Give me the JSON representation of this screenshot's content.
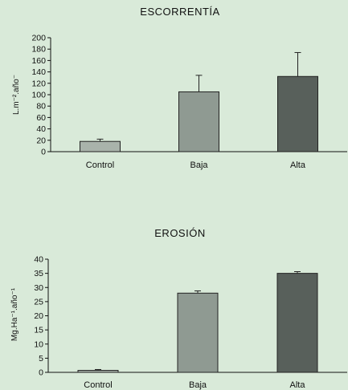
{
  "chart_data": [
    {
      "type": "bar",
      "title": "ESCORRENTÍA",
      "ylabel": "L.m⁻².año⁻",
      "xlabel": "",
      "categories": [
        "Control",
        "Baja",
        "Alta"
      ],
      "values": [
        18,
        105,
        132
      ],
      "errors": [
        4,
        29,
        42
      ],
      "ylim": [
        0,
        200
      ],
      "yticks": [
        0,
        20,
        40,
        60,
        80,
        100,
        120,
        140,
        160,
        180,
        200
      ],
      "colors": [
        "#a9b3ab",
        "#8f9a92",
        "#58605b"
      ],
      "grid": false,
      "legend": "none"
    },
    {
      "type": "bar",
      "title": "EROSIÓN",
      "ylabel": "Mg.Ha⁻¹.año⁻¹",
      "xlabel": "",
      "categories": [
        "Control",
        "Baja",
        "Alta"
      ],
      "values": [
        0.7,
        28,
        35
      ],
      "errors": [
        0.3,
        0.8,
        0.6
      ],
      "ylim": [
        0,
        40
      ],
      "yticks": [
        0,
        5,
        10,
        15,
        20,
        25,
        30,
        35,
        40
      ],
      "colors": [
        "#a9b3ab",
        "#8f9a92",
        "#58605b"
      ],
      "grid": false,
      "legend": "none"
    }
  ]
}
